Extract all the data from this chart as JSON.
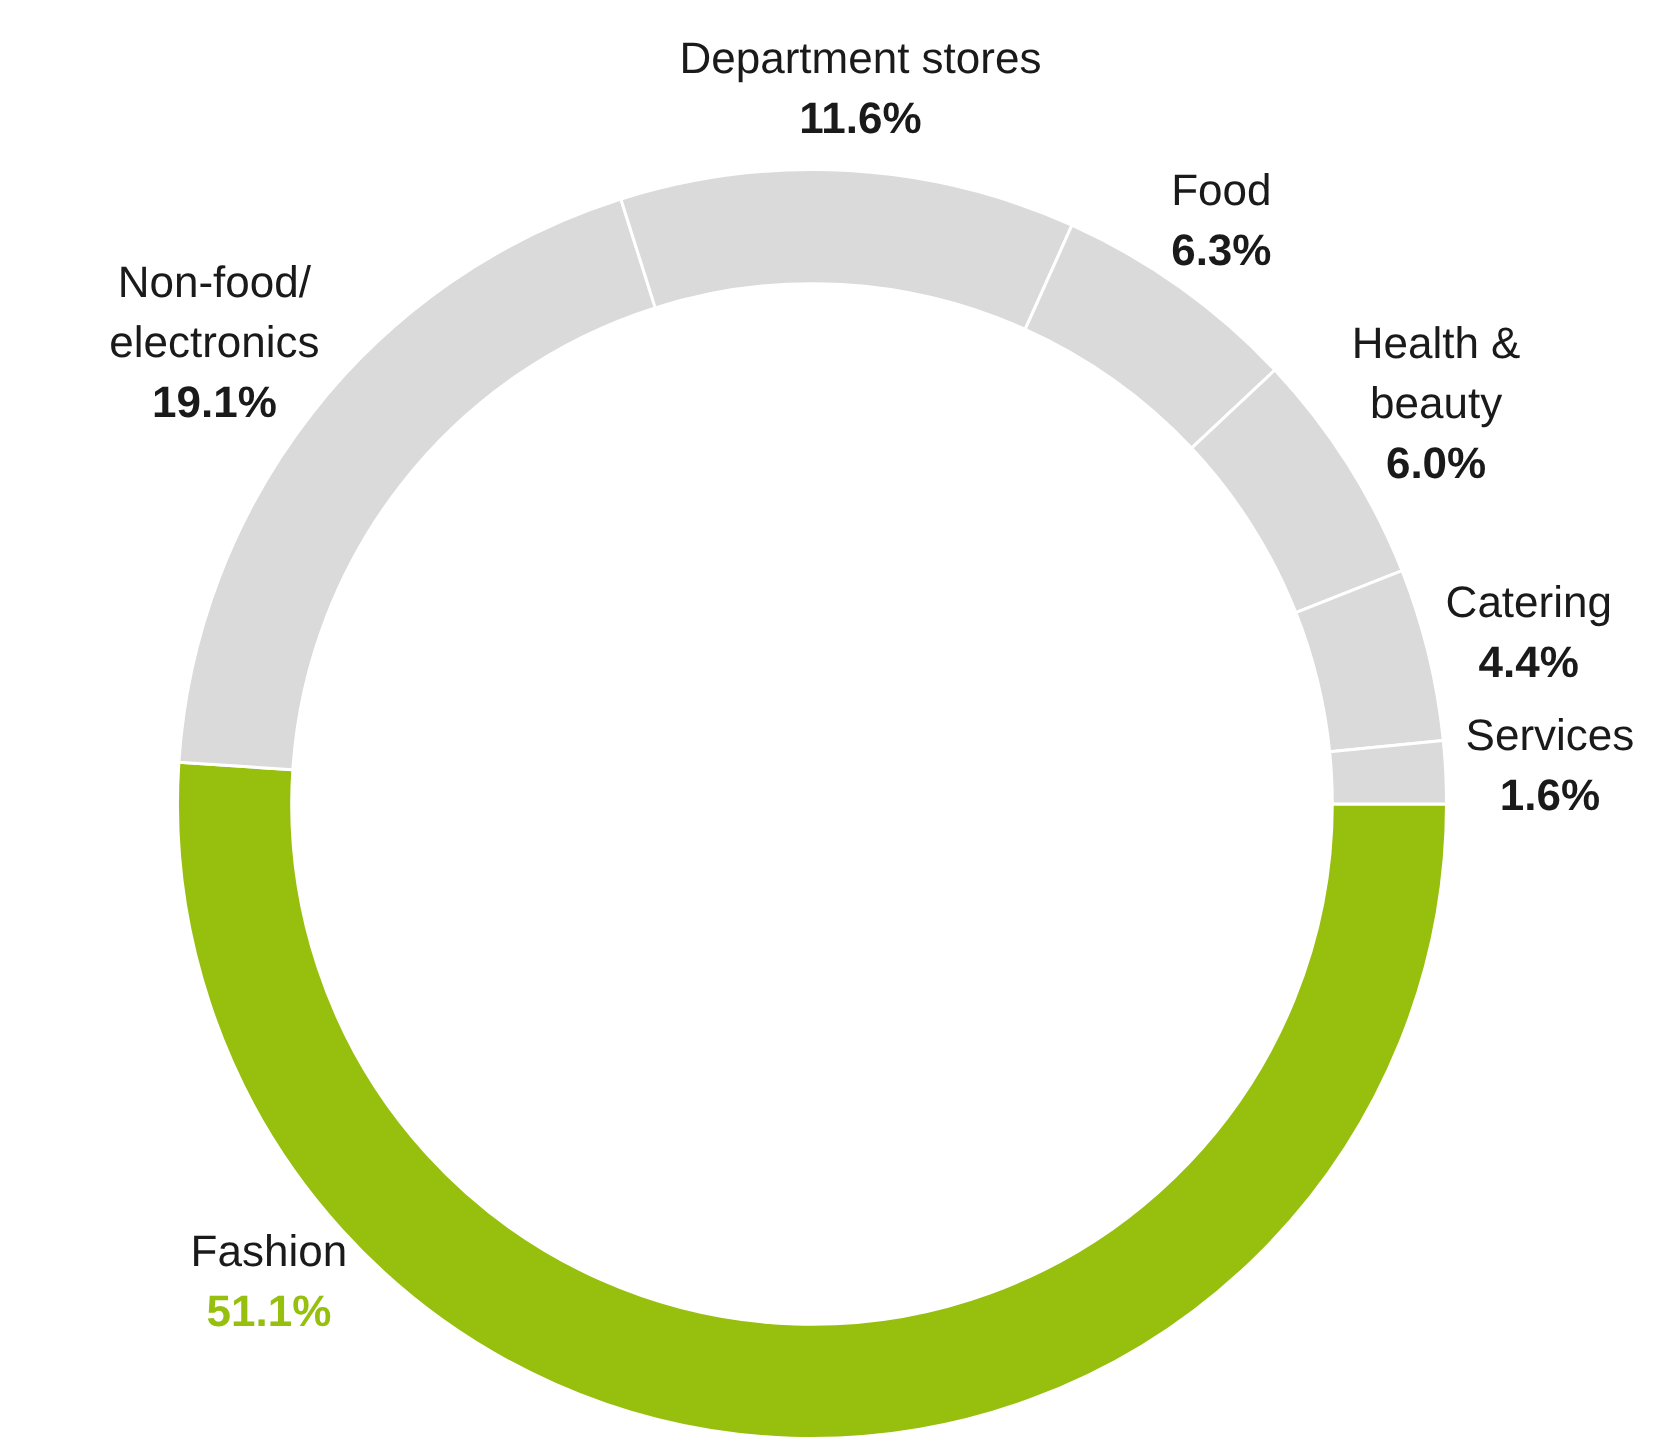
{
  "chart_data": {
    "type": "donut",
    "categories": [
      "Fashion",
      "Non-food/\nelectronics",
      "Department stores",
      "Food",
      "Health &\nbeauty",
      "Catering",
      "Services"
    ],
    "values": [
      51.1,
      19.1,
      11.6,
      6.3,
      6.0,
      4.4,
      1.6
    ],
    "value_labels": [
      "51.1%",
      "19.1%",
      "11.6%",
      "6.3%",
      "6.0%",
      "4.4%",
      "1.6%"
    ],
    "colors": [
      "#97c00e",
      "#dadada",
      "#dadada",
      "#dadada",
      "#dadada",
      "#dadada",
      "#dadada"
    ],
    "legend": false
  }
}
